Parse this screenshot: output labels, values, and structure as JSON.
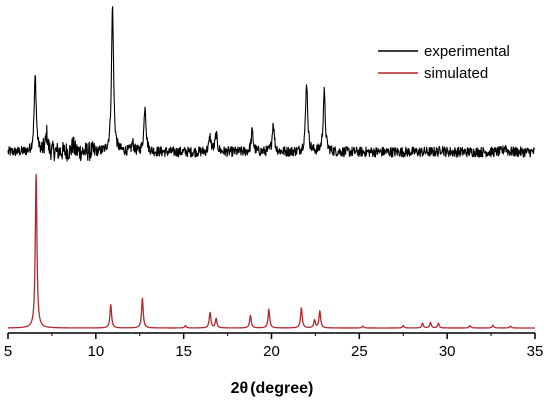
{
  "chart_data": {
    "type": "line",
    "title": "",
    "xlabel": {
      "symbol": "2θ",
      "unit": "(degree)"
    },
    "ylabel": "",
    "xlim": [
      5,
      35
    ],
    "x_ticks": [
      "5",
      "10",
      "15",
      "20",
      "25",
      "30",
      "35"
    ],
    "grid": false,
    "legend_position": "top-right",
    "series": [
      {
        "name": "experimental",
        "color": "#000000",
        "baseline": 0,
        "noise": 0.035,
        "peaks": [
          {
            "x": 6.55,
            "h": 0.52
          },
          {
            "x": 7.2,
            "h": 0.12
          },
          {
            "x": 8.7,
            "h": 0.05
          },
          {
            "x": 10.95,
            "h": 1.0
          },
          {
            "x": 12.1,
            "h": 0.06
          },
          {
            "x": 12.8,
            "h": 0.32
          },
          {
            "x": 16.5,
            "h": 0.1
          },
          {
            "x": 16.85,
            "h": 0.12
          },
          {
            "x": 18.9,
            "h": 0.14
          },
          {
            "x": 20.1,
            "h": 0.2
          },
          {
            "x": 22.0,
            "h": 0.48
          },
          {
            "x": 23.0,
            "h": 0.41
          },
          {
            "x": 29.7,
            "h": 0.03
          },
          {
            "x": 33.3,
            "h": 0.04
          }
        ]
      },
      {
        "name": "simulated",
        "color": "#b5272d",
        "baseline": 0,
        "noise": 0,
        "peaks": [
          {
            "x": 6.6,
            "h": 1.0
          },
          {
            "x": 10.85,
            "h": 0.15
          },
          {
            "x": 12.65,
            "h": 0.19
          },
          {
            "x": 15.1,
            "h": 0.015
          },
          {
            "x": 16.5,
            "h": 0.1
          },
          {
            "x": 16.85,
            "h": 0.06
          },
          {
            "x": 18.8,
            "h": 0.08
          },
          {
            "x": 19.85,
            "h": 0.12
          },
          {
            "x": 21.7,
            "h": 0.13
          },
          {
            "x": 22.45,
            "h": 0.05
          },
          {
            "x": 22.75,
            "h": 0.11
          },
          {
            "x": 25.2,
            "h": 0.012
          },
          {
            "x": 27.5,
            "h": 0.015
          },
          {
            "x": 28.6,
            "h": 0.03
          },
          {
            "x": 29.05,
            "h": 0.035
          },
          {
            "x": 29.5,
            "h": 0.03
          },
          {
            "x": 31.3,
            "h": 0.015
          },
          {
            "x": 32.6,
            "h": 0.018
          },
          {
            "x": 33.6,
            "h": 0.012
          }
        ]
      }
    ]
  }
}
